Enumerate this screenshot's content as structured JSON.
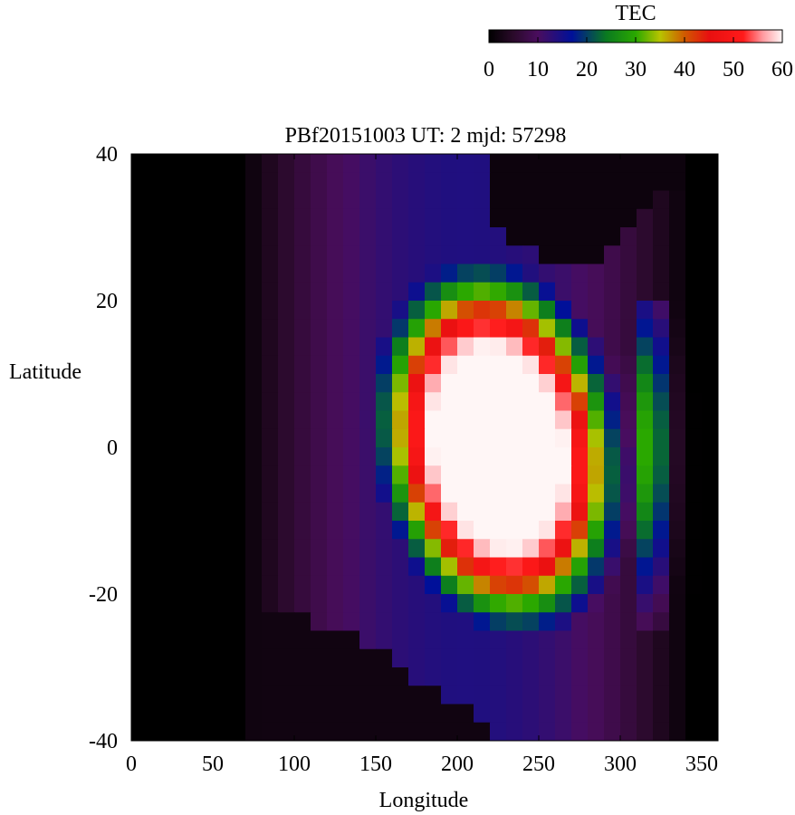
{
  "chart_data": {
    "type": "heatmap",
    "title": "PBf20151003  UT: 2  mjd: 57298",
    "xlabel": "Longitude",
    "ylabel": "Latitude",
    "xlim": [
      0,
      360
    ],
    "ylim": [
      -40,
      40
    ],
    "x_ticks": [
      "0",
      "50",
      "100",
      "150",
      "200",
      "250",
      "300",
      "350"
    ],
    "y_ticks": [
      "40",
      "20",
      "0",
      "-20",
      "-40"
    ],
    "grid": false,
    "colorbar": {
      "label": "TEC",
      "range": [
        0,
        60
      ],
      "ticks": [
        "0",
        "10",
        "20",
        "30",
        "40",
        "50",
        "60"
      ],
      "stops": [
        {
          "v": 0,
          "color": "#000000"
        },
        {
          "v": 5,
          "color": "#2a0a2a"
        },
        {
          "v": 10,
          "color": "#4a0d5e"
        },
        {
          "v": 17,
          "color": "#001099"
        },
        {
          "v": 24,
          "color": "#0a7a20"
        },
        {
          "v": 30,
          "color": "#2aa800"
        },
        {
          "v": 35,
          "color": "#b8c400"
        },
        {
          "v": 40,
          "color": "#d05a00"
        },
        {
          "v": 45,
          "color": "#e81010"
        },
        {
          "v": 52,
          "color": "#ff1a1a"
        },
        {
          "v": 56,
          "color": "#ff9aa0"
        },
        {
          "v": 60,
          "color": "#fff6f6"
        }
      ]
    },
    "grid_resolution": {
      "lon_step": 10,
      "lat_step": 2.5
    },
    "lon_centers": [
      5,
      15,
      25,
      35,
      45,
      55,
      65,
      75,
      85,
      95,
      105,
      115,
      125,
      135,
      145,
      155,
      165,
      175,
      185,
      195,
      205,
      215,
      225,
      235,
      245,
      255,
      265,
      275,
      285,
      295,
      305,
      315,
      325,
      335,
      345,
      355
    ],
    "lat_centers": [
      38.75,
      36.25,
      33.75,
      31.25,
      28.75,
      26.25,
      23.75,
      21.25,
      18.75,
      16.25,
      13.75,
      11.25,
      8.75,
      6.25,
      3.75,
      1.25,
      -1.25,
      -3.75,
      -6.25,
      -8.75,
      -11.25,
      -13.75,
      -16.25,
      -18.75,
      -21.25,
      -23.75,
      -26.25,
      -28.75,
      -31.25,
      -33.75,
      -36.25,
      -38.75
    ]
  }
}
